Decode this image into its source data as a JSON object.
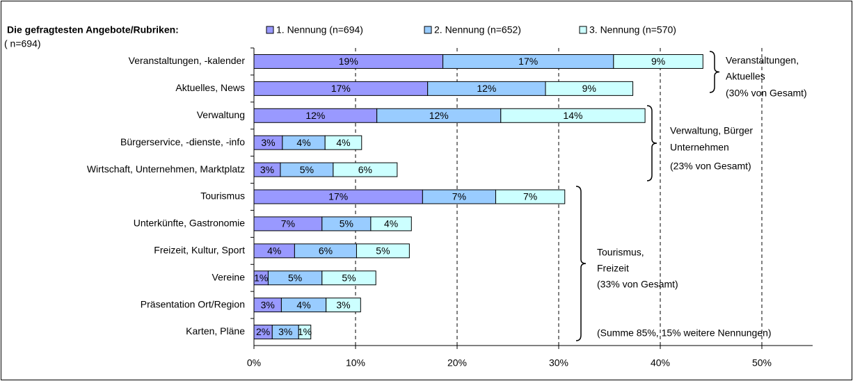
{
  "chart_data": {
    "type": "stacked_barh",
    "title": "Die gefragtesten Angebote/Rubriken:",
    "subtitle": "( n=694)",
    "categories": [
      "Veranstaltungen, -kalender",
      "Aktuelles, News",
      "Verwaltung",
      "Bürgerservice, -dienste, -info",
      "Wirtschaft, Unternehmen, Marktplatz",
      "Tourismus",
      "Unterkünfte, Gastronomie",
      "Freizeit, Kultur, Sport",
      "Vereine",
      "Präsentation Ort/Region",
      "Karten, Pläne"
    ],
    "series": [
      {
        "name": "1. Nennung (n=694)",
        "color": "#9999ff",
        "values": [
          18.6,
          17.1,
          12.1,
          2.8,
          2.6,
          16.6,
          6.7,
          4.0,
          1.4,
          2.7,
          1.8
        ],
        "value_labels": [
          "19%",
          "17%",
          "12%",
          "3%",
          "3%",
          "17%",
          "7%",
          "4%",
          "1%",
          "3%",
          "2%"
        ]
      },
      {
        "name": "2. Nennung (n=652)",
        "color": "#99ccff",
        "values": [
          16.8,
          11.6,
          12.2,
          4.2,
          5.2,
          7.2,
          4.8,
          6.1,
          5.3,
          4.4,
          2.6
        ],
        "value_labels": [
          "17%",
          "12%",
          "12%",
          "4%",
          "5%",
          "7%",
          "5%",
          "6%",
          "5%",
          "4%",
          "3%"
        ]
      },
      {
        "name": "3. Nennung (n=570)",
        "color": "#ccffff",
        "values": [
          8.8,
          8.6,
          14.2,
          3.6,
          6.3,
          6.8,
          4.0,
          5.2,
          5.3,
          3.4,
          1.2
        ],
        "value_labels": [
          "9%",
          "9%",
          "14%",
          "4%",
          "6%",
          "7%",
          "4%",
          "5%",
          "5%",
          "3%",
          "1%"
        ]
      }
    ],
    "xlim": [
      0,
      55
    ],
    "xticks": [
      {
        "value": 0,
        "label": "0%"
      },
      {
        "value": 10,
        "label": "10%"
      },
      {
        "value": 20,
        "label": "20%"
      },
      {
        "value": 30,
        "label": "30%"
      },
      {
        "value": 40,
        "label": "40%"
      },
      {
        "value": 50,
        "label": "50%"
      }
    ],
    "grid": true,
    "annotations": [
      {
        "lines": [
          "Veranstaltungen,",
          "Aktuelles",
          "(30% von Gesamt)"
        ]
      },
      {
        "lines": [
          "Verwaltung, Bürger",
          "Unternehmen",
          "(23% von Gesamt)"
        ]
      },
      {
        "lines": [
          "Tourismus,",
          "Freizeit",
          "(33% von Gesamt)"
        ]
      },
      {
        "lines": [
          "(Summe 85%, 15% weitere Nennungen)"
        ]
      }
    ]
  }
}
